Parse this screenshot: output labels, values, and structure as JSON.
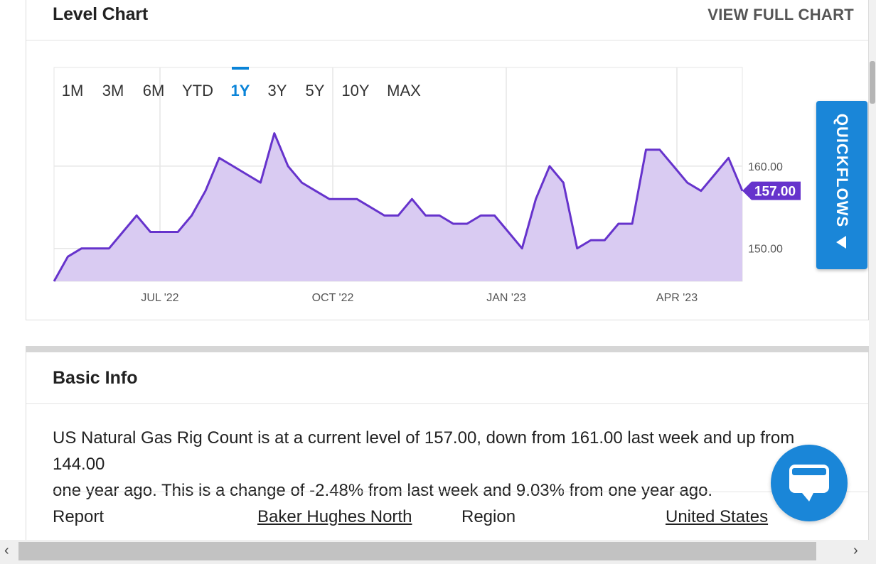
{
  "level_chart": {
    "title": "Level Chart",
    "view_full_chart": "VIEW FULL CHART",
    "ranges": [
      "1M",
      "3M",
      "6M",
      "YTD",
      "1Y",
      "3Y",
      "5Y",
      "10Y",
      "MAX"
    ],
    "active_range": "1Y"
  },
  "chart_data": {
    "type": "area",
    "title": "",
    "xlabel": "",
    "ylabel": "",
    "x_ticks": [
      "JUL '22",
      "OCT '22",
      "JAN '23",
      "APR '23"
    ],
    "y_ticks": [
      "160.00",
      "150.00"
    ],
    "ylim": [
      146.0,
      172.0
    ],
    "current_value_label": "157.00",
    "grid": true,
    "colors": {
      "line": "#6633cc",
      "fill": "#d9cbf2",
      "accent": "#0a84d8"
    },
    "series": [
      {
        "values": [
          146,
          149,
          150,
          150,
          150,
          152,
          154,
          152,
          152,
          152,
          154,
          157,
          161,
          160,
          159,
          158,
          164,
          160,
          158,
          157,
          156,
          156,
          156,
          155,
          154,
          154,
          156,
          154,
          154,
          153,
          153,
          154,
          154,
          152,
          150,
          156,
          160,
          158,
          150,
          151,
          151,
          153,
          153,
          162,
          162,
          160,
          158,
          157,
          159,
          161,
          157
        ]
      }
    ]
  },
  "basic_info": {
    "title": "Basic Info",
    "sentence_1": "US Natural Gas Rig Count is at a current level of 157.00, down from 161.00 last week and up from 144.00",
    "sentence_2": "one year ago. This is a change of -2.48% from last week and 9.03% from one year ago.",
    "report_label": "Report",
    "report_value": "Baker Hughes North",
    "region_label": "Region",
    "region_value": "United States"
  },
  "quickflows": {
    "label": "QUICKFLOWS"
  },
  "icons": {
    "chat": "chat-icon",
    "quickflows_arrow": "triangle-left-icon",
    "scroll_left": "chevron-left-icon",
    "scroll_right": "chevron-right-icon"
  }
}
